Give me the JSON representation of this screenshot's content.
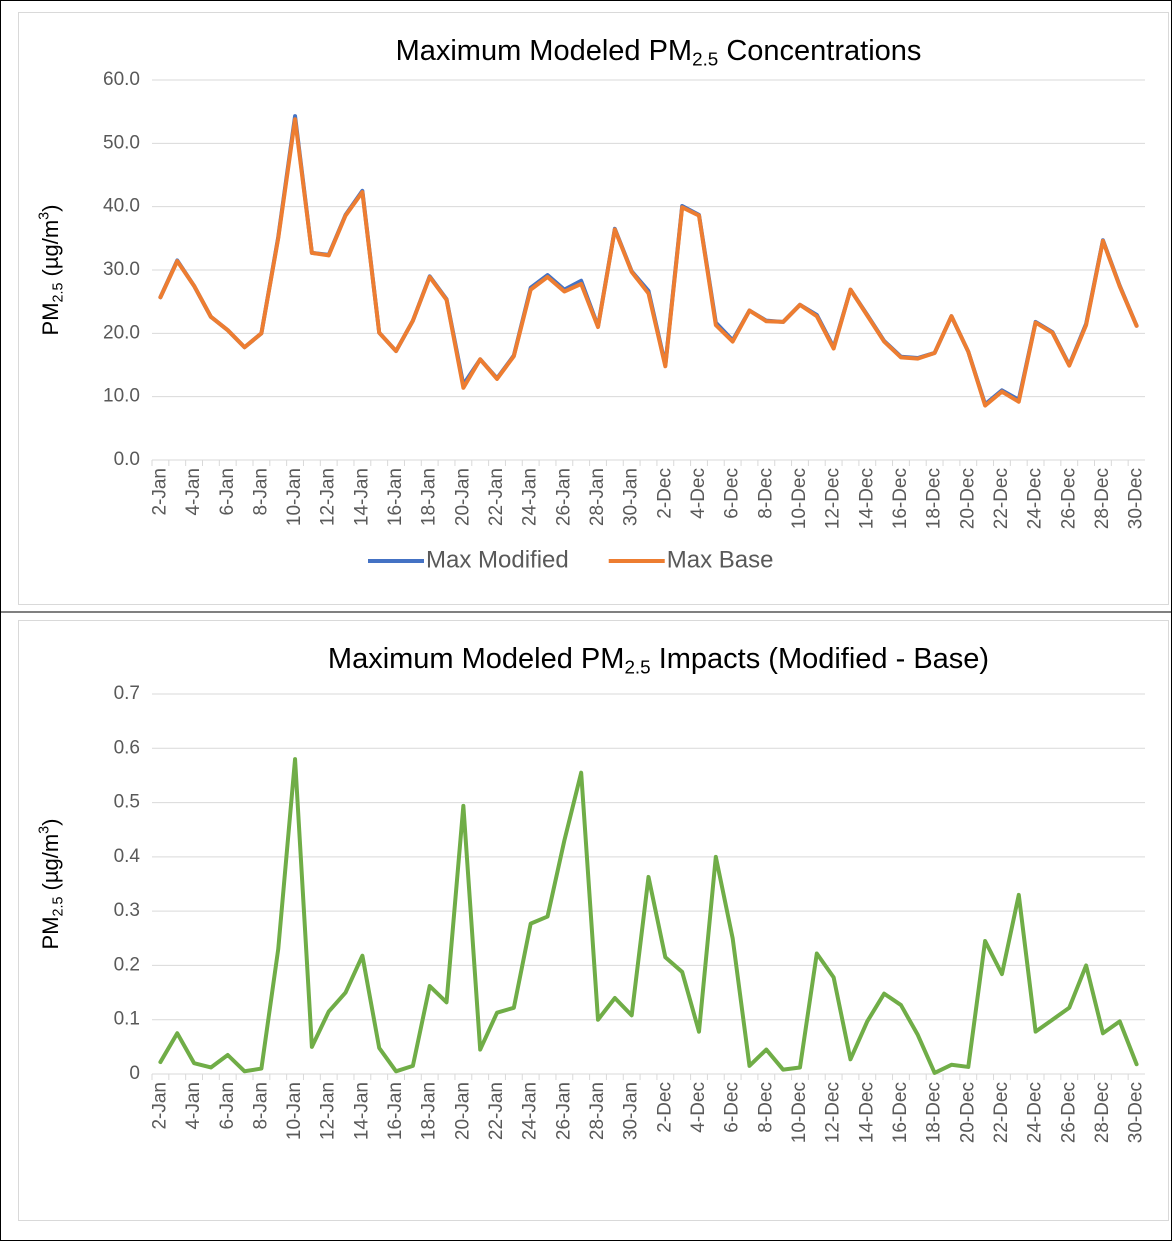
{
  "chart_data": [
    {
      "type": "line",
      "title": [
        {
          "text": "Maximum Modeled PM"
        },
        {
          "text": "2.5",
          "script": "sub"
        },
        {
          "text": " Concentrations"
        }
      ],
      "ylabel": [
        {
          "text": "PM"
        },
        {
          "text": "2.5",
          "script": "sub"
        },
        {
          "text": " (µg/m"
        },
        {
          "text": "3",
          "script": "sup"
        },
        {
          "text": ")"
        }
      ],
      "categories": [
        "2-Jan",
        null,
        "4-Jan",
        null,
        "6-Jan",
        null,
        "8-Jan",
        null,
        "10-Jan",
        null,
        "12-Jan",
        null,
        "14-Jan",
        null,
        "16-Jan",
        null,
        "18-Jan",
        null,
        "20-Jan",
        null,
        "22-Jan",
        null,
        "24-Jan",
        null,
        "26-Jan",
        null,
        "28-Jan",
        null,
        "30-Jan",
        null,
        "2-Dec",
        null,
        "4-Dec",
        null,
        "6-Dec",
        null,
        "8-Dec",
        null,
        "10-Dec",
        null,
        "12-Dec",
        null,
        "14-Dec",
        null,
        "16-Dec",
        null,
        "18-Dec",
        null,
        "20-Dec",
        null,
        "22-Dec",
        null,
        "24-Dec",
        null,
        "26-Dec",
        null,
        "28-Dec",
        null,
        "30-Dec"
      ],
      "series": [
        {
          "name": "Max Modified",
          "color": "#4472c4",
          "values": [
            25.7,
            31.5,
            27.5,
            22.6,
            20.5,
            17.8,
            20.0,
            35.2,
            54.3,
            32.7,
            32.4,
            38.7,
            42.5,
            20.1,
            17.2,
            22.0,
            29.0,
            25.4,
            11.9,
            15.9,
            12.9,
            16.5,
            27.2,
            29.2,
            26.9,
            28.3,
            21.1,
            36.5,
            29.8,
            26.7,
            15.0,
            40.1,
            38.7,
            21.7,
            18.9,
            23.6,
            22.0,
            21.8,
            24.5,
            22.9,
            17.8,
            26.9,
            22.9,
            18.8,
            16.3,
            16.1,
            16.9,
            22.7,
            17.1,
            8.8,
            11.0,
            9.5,
            21.8,
            20.2,
            15.0,
            21.5,
            34.7,
            27.5,
            21.2
          ]
        },
        {
          "name": "Max Base",
          "color": "#ed7d31",
          "values": [
            25.7,
            31.4,
            27.5,
            22.6,
            20.5,
            17.8,
            20.0,
            35.0,
            53.8,
            32.7,
            32.3,
            38.6,
            42.3,
            20.1,
            17.2,
            22.0,
            28.9,
            25.3,
            11.4,
            15.9,
            12.8,
            16.4,
            26.9,
            28.9,
            26.6,
            27.8,
            21.0,
            36.4,
            29.7,
            26.3,
            14.8,
            39.9,
            38.6,
            21.3,
            18.7,
            23.6,
            21.9,
            21.8,
            24.5,
            22.7,
            17.6,
            26.9,
            22.8,
            18.7,
            16.2,
            16.0,
            16.9,
            22.7,
            17.1,
            8.6,
            10.8,
            9.2,
            21.7,
            20.1,
            14.9,
            21.3,
            34.6,
            27.4,
            21.2
          ]
        }
      ],
      "ylim": [
        0,
        60
      ],
      "yticks": [
        {
          "value": 0,
          "label": "0.0"
        },
        {
          "value": 10,
          "label": "10.0"
        },
        {
          "value": 20,
          "label": "20.0"
        },
        {
          "value": 30,
          "label": "30.0"
        },
        {
          "value": 40,
          "label": "40.0"
        },
        {
          "value": 50,
          "label": "50.0"
        },
        {
          "value": 60,
          "label": "60.0"
        }
      ],
      "grid": true,
      "legend": "bottom"
    },
    {
      "type": "line",
      "title": [
        {
          "text": "Maximum Modeled PM"
        },
        {
          "text": "2.5",
          "script": "sub"
        },
        {
          "text": " Impacts (Modified - Base)"
        }
      ],
      "ylabel": [
        {
          "text": "PM"
        },
        {
          "text": "2.5",
          "script": "sub"
        },
        {
          "text": " (µg/m"
        },
        {
          "text": "3",
          "script": "sup"
        },
        {
          "text": ")"
        }
      ],
      "categories": [
        "2-Jan",
        null,
        "4-Jan",
        null,
        "6-Jan",
        null,
        "8-Jan",
        null,
        "10-Jan",
        null,
        "12-Jan",
        null,
        "14-Jan",
        null,
        "16-Jan",
        null,
        "18-Jan",
        null,
        "20-Jan",
        null,
        "22-Jan",
        null,
        "24-Jan",
        null,
        "26-Jan",
        null,
        "28-Jan",
        null,
        "30-Jan",
        null,
        "2-Dec",
        null,
        "4-Dec",
        null,
        "6-Dec",
        null,
        "8-Dec",
        null,
        "10-Dec",
        null,
        "12-Dec",
        null,
        "14-Dec",
        null,
        "16-Dec",
        null,
        "18-Dec",
        null,
        "20-Dec",
        null,
        "22-Dec",
        null,
        "24-Dec",
        null,
        "26-Dec",
        null,
        "28-Dec",
        null,
        "30-Dec"
      ],
      "series": [
        {
          "color": "#70ad47",
          "values": [
            0.022,
            0.075,
            0.02,
            0.012,
            0.035,
            0.005,
            0.01,
            0.23,
            0.58,
            0.05,
            0.115,
            0.15,
            0.218,
            0.048,
            0.005,
            0.015,
            0.162,
            0.132,
            0.494,
            0.045,
            0.113,
            0.122,
            0.277,
            0.29,
            0.43,
            0.555,
            0.1,
            0.14,
            0.108,
            0.363,
            0.215,
            0.188,
            0.078,
            0.4,
            0.25,
            0.015,
            0.045,
            0.008,
            0.012,
            0.222,
            0.178,
            0.027,
            0.097,
            0.148,
            0.127,
            0.072,
            0.002,
            0.017,
            0.013,
            0.245,
            0.184,
            0.33,
            0.078,
            0.1,
            0.122,
            0.2,
            0.075,
            0.097,
            0.018
          ]
        }
      ],
      "ylim": [
        0,
        0.7
      ],
      "yticks": [
        0,
        0.1,
        0.2,
        0.3,
        0.4,
        0.5,
        0.6,
        0.7
      ],
      "grid": true
    }
  ]
}
